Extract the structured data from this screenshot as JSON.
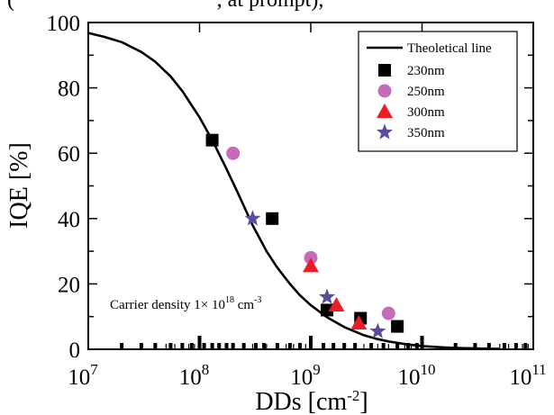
{
  "chart_data": {
    "type": "scatter",
    "top_fragment": "(",
    "top_fragment_right": ", at prompt), ",
    "xlabel": "DDs [cm",
    "xlabel_exp": "-2",
    "xlabel_close": "]",
    "ylabel": "IQE [%]",
    "xscale": "log",
    "xlim": [
      10000000,
      100000000000
    ],
    "ylim": [
      0,
      100
    ],
    "x_ticks": [
      {
        "mantissa": "10",
        "exp": "7"
      },
      {
        "mantissa": "10",
        "exp": "8"
      },
      {
        "mantissa": "10",
        "exp": "9"
      },
      {
        "mantissa": "10",
        "exp": "10"
      },
      {
        "mantissa": "10",
        "exp": "11"
      }
    ],
    "y_ticks": [
      "0",
      "20",
      "40",
      "60",
      "80",
      "100"
    ],
    "grid": false,
    "legend_position": "top-right",
    "line": {
      "name": "Theoletical line",
      "x": [
        10000000,
        14000000,
        20000000,
        30000000,
        40000000,
        55000000,
        70000000,
        100000000,
        130000000,
        170000000,
        220000000,
        300000000,
        400000000,
        500000000,
        650000000,
        800000000,
        1000000000,
        1400000000,
        2000000000,
        3000000000,
        4000000000,
        5000000000,
        7000000000,
        10000000000,
        15000000000,
        20000000000,
        30000000000,
        50000000000
      ],
      "y": [
        96.8,
        95.6,
        94,
        91,
        88,
        83.5,
        79,
        71,
        64,
        56,
        48,
        38,
        30,
        25,
        20,
        16.5,
        13.5,
        9.8,
        6.8,
        4.3,
        3.1,
        2.4,
        1.6,
        1.0,
        0.6,
        0.4,
        0.25,
        0.1
      ],
      "color": "#000000"
    },
    "series": [
      {
        "name": "230nm",
        "marker": "square",
        "color": "#000000",
        "x": [
          130000000,
          450000000,
          1400000000,
          2800000000,
          6000000000
        ],
        "y": [
          64,
          40,
          12,
          9.5,
          7
        ]
      },
      {
        "name": "250nm",
        "marker": "circle",
        "color": "#c66bb9",
        "x": [
          200000000,
          1000000000,
          5000000000
        ],
        "y": [
          60,
          28,
          11
        ]
      },
      {
        "name": "300nm",
        "marker": "triangle",
        "color": "#ee1c25",
        "x": [
          1000000000,
          1700000000,
          2700000000
        ],
        "y": [
          25.5,
          13.5,
          8
        ]
      },
      {
        "name": "350nm",
        "marker": "star",
        "color": "#5e4b9b",
        "x": [
          300000000,
          1400000000,
          4000000000
        ],
        "y": [
          40,
          16,
          5.5
        ]
      }
    ],
    "annotation": {
      "prefix": "Carrier density 1× 10",
      "exp1": "18",
      "unit": " cm",
      "exp2": "-3"
    },
    "rug_x": [
      20000000,
      30000000,
      40000000,
      55000000,
      70000000,
      85000000,
      110000000,
      130000000,
      150000000,
      175000000,
      200000000,
      250000000,
      320000000,
      380000000,
      500000000,
      650000000,
      800000000,
      1000000000,
      1300000000,
      1600000000,
      2000000000,
      2500000000,
      3500000000,
      4500000000,
      6000000000,
      7500000000,
      9000000000,
      20000000000,
      30000000000,
      40000000000,
      55000000000,
      70000000000,
      85000000000
    ],
    "rug_tall_x": [
      100000000,
      1000000000,
      10000000000
    ]
  }
}
